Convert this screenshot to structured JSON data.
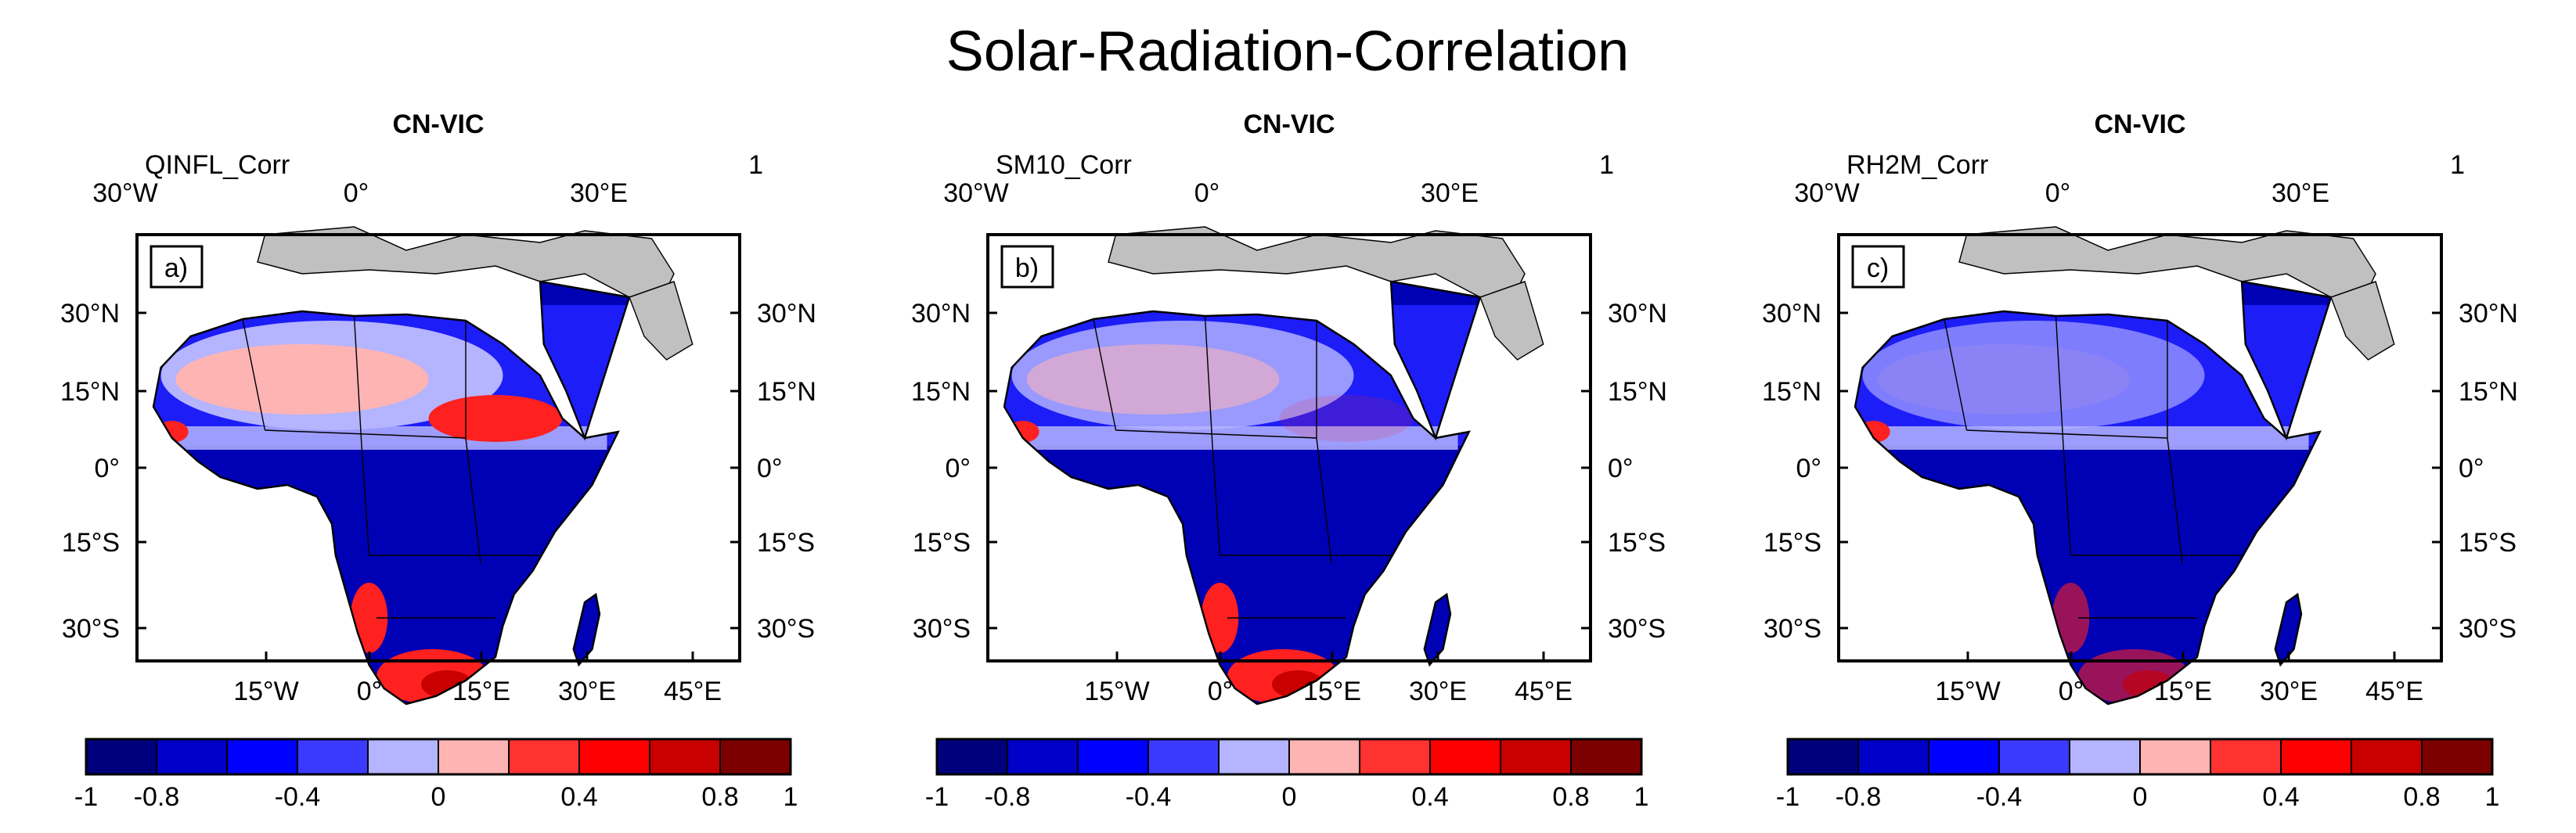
{
  "figure": {
    "title": "Solar-Radiation-Correlation"
  },
  "panels": [
    {
      "label": "a)",
      "model": "CN-VIC",
      "variable": "QINFL_Corr",
      "top_right": "1"
    },
    {
      "label": "b)",
      "model": "CN-VIC",
      "variable": "SM10_Corr",
      "top_right": "1"
    },
    {
      "label": "c)",
      "model": "CN-VIC",
      "variable": "RH2M_Corr",
      "top_right": "1"
    }
  ],
  "axes": {
    "top_lon_ticks": [
      "30°W",
      "0°",
      "30°E"
    ],
    "bottom_lon_ticks": [
      "15°W",
      "0°",
      "15°E",
      "30°E",
      "45°E"
    ],
    "lat_ticks": [
      "30°N",
      "15°N",
      "0°",
      "15°S",
      "30°S"
    ]
  },
  "colorbar": {
    "colors": [
      "#00007d",
      "#0000c8",
      "#0000ff",
      "#3a3aff",
      "#b4b4ff",
      "#ffb4b4",
      "#ff3232",
      "#ff0000",
      "#c80000",
      "#7d0000"
    ],
    "tick_labels": [
      "-1",
      "-0.8",
      "-0.4",
      "0",
      "0.4",
      "0.8",
      "1"
    ],
    "tick_values": [
      -1,
      -0.8,
      -0.4,
      0,
      0.4,
      0.8,
      1
    ],
    "range": [
      -1,
      1
    ]
  },
  "map_colors": {
    "ocean": "#ffffff",
    "non_domain_land": "#c0c0c0",
    "deep_blue": "#0000b4",
    "mid_blue": "#2020ff",
    "light_blue": "#b4b4ff",
    "pink": "#ffb4b4",
    "red": "#ff2020",
    "dark_red": "#c80000"
  }
}
